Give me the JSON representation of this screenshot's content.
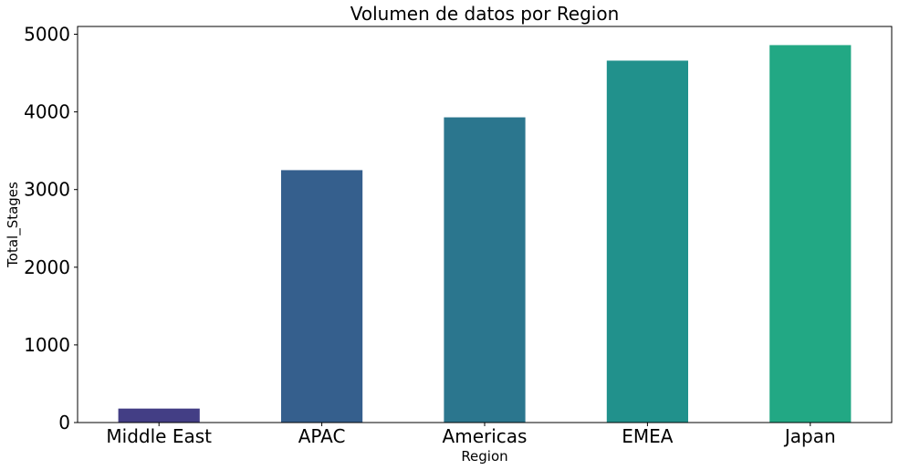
{
  "chart_data": {
    "type": "bar",
    "title": "Volumen de datos por Region",
    "xlabel": "Region",
    "ylabel": "Total_Stages",
    "categories": [
      "Middle East",
      "APAC",
      "Americas",
      "EMEA",
      "Japan"
    ],
    "values": [
      180,
      3250,
      3930,
      4660,
      4860
    ],
    "colors": [
      "#433e85",
      "#355f8d",
      "#2b768e",
      "#21918c",
      "#22a884"
    ],
    "ylim": [
      0,
      5100
    ],
    "yticks": [
      "0",
      "1000",
      "2000",
      "3000",
      "4000",
      "5000"
    ],
    "ytick_values": [
      0,
      1000,
      2000,
      3000,
      4000,
      5000
    ],
    "grid": false,
    "legend": "none"
  }
}
